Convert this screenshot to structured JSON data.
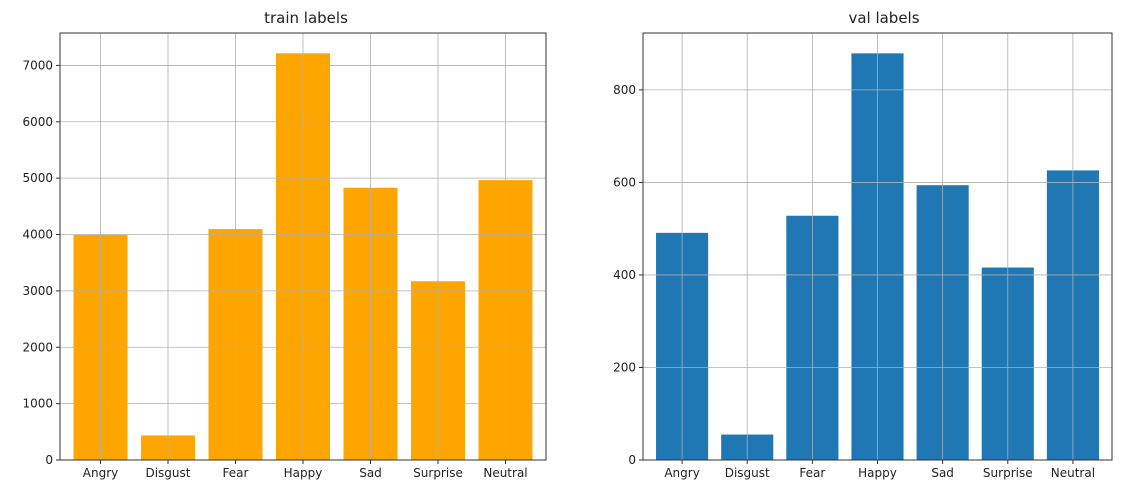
{
  "chart_data": [
    {
      "type": "bar",
      "title": "train labels",
      "categories": [
        "Angry",
        "Disgust",
        "Fear",
        "Happy",
        "Sad",
        "Surprise",
        "Neutral"
      ],
      "values": [
        3995,
        436,
        4097,
        7215,
        4830,
        3171,
        4965
      ],
      "color": "#ffa500",
      "ylim": [
        0,
        7575
      ],
      "yticks": [
        0,
        1000,
        2000,
        3000,
        4000,
        5000,
        6000,
        7000
      ],
      "grid": true
    },
    {
      "type": "bar",
      "title": "val labels",
      "categories": [
        "Angry",
        "Disgust",
        "Fear",
        "Happy",
        "Sad",
        "Surprise",
        "Neutral"
      ],
      "values": [
        491,
        55,
        528,
        879,
        594,
        416,
        626
      ],
      "color": "#1f77b4",
      "ylim": [
        0,
        923
      ],
      "yticks": [
        0,
        200,
        400,
        600,
        800
      ],
      "grid": true
    }
  ]
}
